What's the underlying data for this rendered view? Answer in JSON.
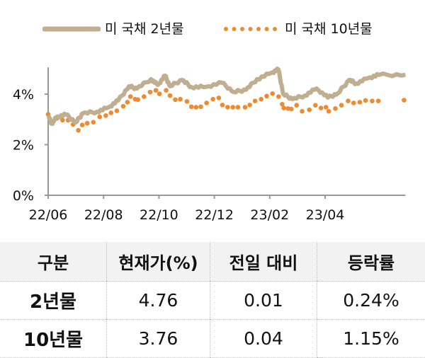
{
  "chart_data": {
    "type": "line",
    "title": "",
    "xlabel": "",
    "ylabel": "",
    "ylim": [
      0,
      5
    ],
    "yticks": [
      "0%",
      "2%",
      "4%"
    ],
    "ytick_values": [
      0,
      2,
      4
    ],
    "xticks": [
      "22/06",
      "22/08",
      "22/10",
      "22/12",
      "23/02",
      "23/04"
    ],
    "xtick_months": [
      0,
      2,
      4,
      6,
      8,
      10
    ],
    "xlim_months": [
      0,
      12.9
    ],
    "legend_position": "top",
    "series": [
      {
        "name": "미 국채 2년물",
        "style": "solid",
        "color": "#bfae8f",
        "x": [
          0,
          0.13,
          0.31,
          0.64,
          1.0,
          1.25,
          1.76,
          2.17,
          2.53,
          2.92,
          3.2,
          3.71,
          3.96,
          4.22,
          4.4,
          4.83,
          5.17,
          5.68,
          6.27,
          6.7,
          7.14,
          7.54,
          8.06,
          8.31,
          8.49,
          8.82,
          9.26,
          9.69,
          10.1,
          10.46,
          10.87,
          11.12,
          11.56,
          11.94,
          12.9
        ],
        "y": [
          3.15,
          2.83,
          3.1,
          3.19,
          2.88,
          3.24,
          3.3,
          3.47,
          3.75,
          4.31,
          4.22,
          4.59,
          4.36,
          4.73,
          4.31,
          4.56,
          4.28,
          4.28,
          4.45,
          4.08,
          4.17,
          4.59,
          4.84,
          4.98,
          4.0,
          3.8,
          3.94,
          4.22,
          3.86,
          4.03,
          4.56,
          4.42,
          4.64,
          4.76,
          4.76
        ]
      },
      {
        "name": "미 국채 10년물",
        "style": "dotted",
        "color": "#f08a30",
        "x": [
          0,
          0.14,
          0.31,
          0.52,
          0.72,
          0.9,
          1.09,
          1.23,
          1.41,
          1.63,
          1.86,
          2.08,
          2.27,
          2.48,
          2.71,
          2.86,
          2.97,
          3.14,
          3.24,
          3.46,
          3.68,
          3.89,
          4.02,
          4.26,
          4.4,
          4.59,
          4.77,
          5.01,
          5.17,
          5.34,
          5.51,
          5.72,
          5.95,
          6.16,
          6.29,
          6.48,
          6.67,
          6.85,
          7.11,
          7.28,
          7.47,
          7.69,
          7.89,
          8.1,
          8.32,
          8.45,
          8.51,
          8.66,
          8.78,
          8.97,
          9.17,
          9.43,
          9.65,
          9.85,
          10.03,
          10.13,
          10.37,
          10.59,
          10.83,
          11.03,
          11.25,
          11.46,
          11.7,
          11.92,
          12.85
        ],
        "y": [
          3.2,
          2.87,
          3.04,
          2.97,
          2.97,
          2.8,
          2.57,
          2.78,
          2.85,
          2.89,
          3.1,
          3.15,
          3.26,
          3.34,
          3.52,
          3.68,
          3.9,
          3.8,
          3.78,
          3.9,
          4.08,
          4.15,
          4.01,
          4.15,
          3.94,
          3.78,
          3.8,
          3.71,
          3.5,
          3.48,
          3.5,
          3.65,
          3.8,
          3.85,
          3.57,
          3.48,
          3.48,
          3.48,
          3.48,
          3.57,
          3.73,
          3.8,
          3.92,
          4.02,
          3.9,
          3.6,
          3.45,
          3.43,
          3.41,
          3.56,
          3.32,
          3.38,
          3.56,
          3.45,
          3.48,
          3.32,
          3.43,
          3.56,
          3.73,
          3.65,
          3.68,
          3.75,
          3.73,
          3.73,
          3.76
        ]
      }
    ]
  },
  "table": {
    "headers": [
      "구분",
      "현재가(%)",
      "전일 대비",
      "등락률"
    ],
    "rows": [
      [
        "2년물",
        "4.76",
        "0.01",
        "0.24%"
      ],
      [
        "10년물",
        "3.76",
        "0.04",
        "1.15%"
      ]
    ]
  }
}
